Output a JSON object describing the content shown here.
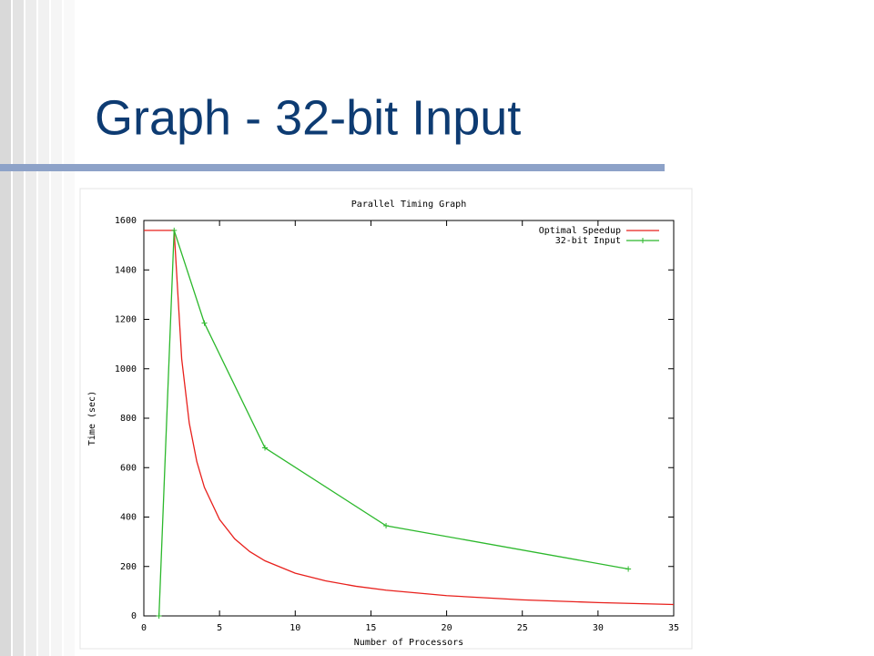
{
  "slide_title": "Graph - 32-bit Input",
  "chart_data": {
    "type": "line",
    "title": "Parallel Timing Graph",
    "x_label": "Number of Processors",
    "y_label": "Time (sec)",
    "xlim": [
      0,
      35
    ],
    "xticks": [
      0,
      5,
      10,
      15,
      20,
      25,
      30,
      35
    ],
    "ylim": [
      0,
      1600
    ],
    "yticks": [
      0,
      200,
      400,
      600,
      800,
      1000,
      1200,
      1400,
      1600
    ],
    "legend": "top-right",
    "series": [
      {
        "name": "Optimal Speedup",
        "color": "#e8201c",
        "markers": false,
        "x": [
          0,
          1,
          2,
          2.5,
          3,
          3.5,
          4,
          5,
          6,
          7,
          8,
          10,
          12,
          14,
          16,
          20,
          25,
          30,
          35
        ],
        "values": [
          1560,
          1560,
          1560,
          1040,
          780,
          624,
          520,
          390,
          312,
          260,
          223,
          173,
          142,
          120,
          104,
          82,
          65,
          54,
          46
        ]
      },
      {
        "name": "32-bit Input",
        "color": "#2cb82c",
        "markers": true,
        "x": [
          1,
          2,
          4,
          8,
          16,
          32
        ],
        "values": [
          0,
          1560,
          1185,
          680,
          365,
          190
        ]
      }
    ]
  }
}
